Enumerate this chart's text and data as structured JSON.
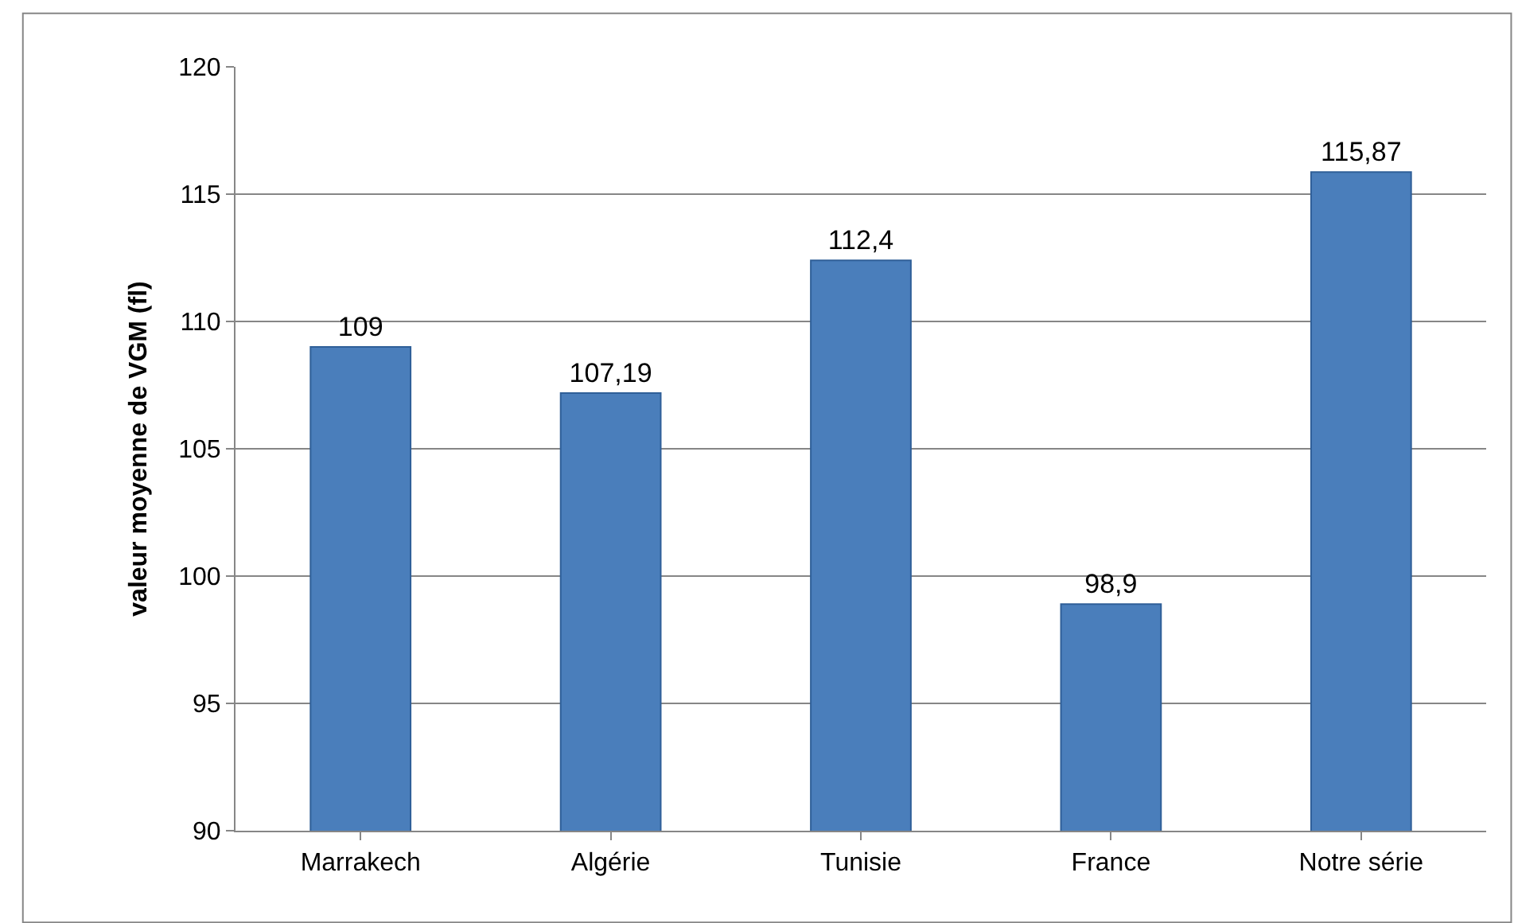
{
  "chart_data": {
    "type": "bar",
    "ylabel": "valeur moyenne de VGM (fl)",
    "categories": [
      "Marrakech",
      "Algérie",
      "Tunisie",
      "France",
      "Notre série"
    ],
    "values": [
      109,
      107.19,
      112.4,
      98.9,
      115.87
    ],
    "value_labels": [
      "109",
      "107,19",
      "112,4",
      "98,9",
      "115,87"
    ],
    "color": "#4a7ebb",
    "ylim": [
      90,
      120
    ],
    "yticks": [
      90,
      95,
      100,
      105,
      110,
      115,
      120
    ],
    "grid": "y",
    "legend": false
  }
}
